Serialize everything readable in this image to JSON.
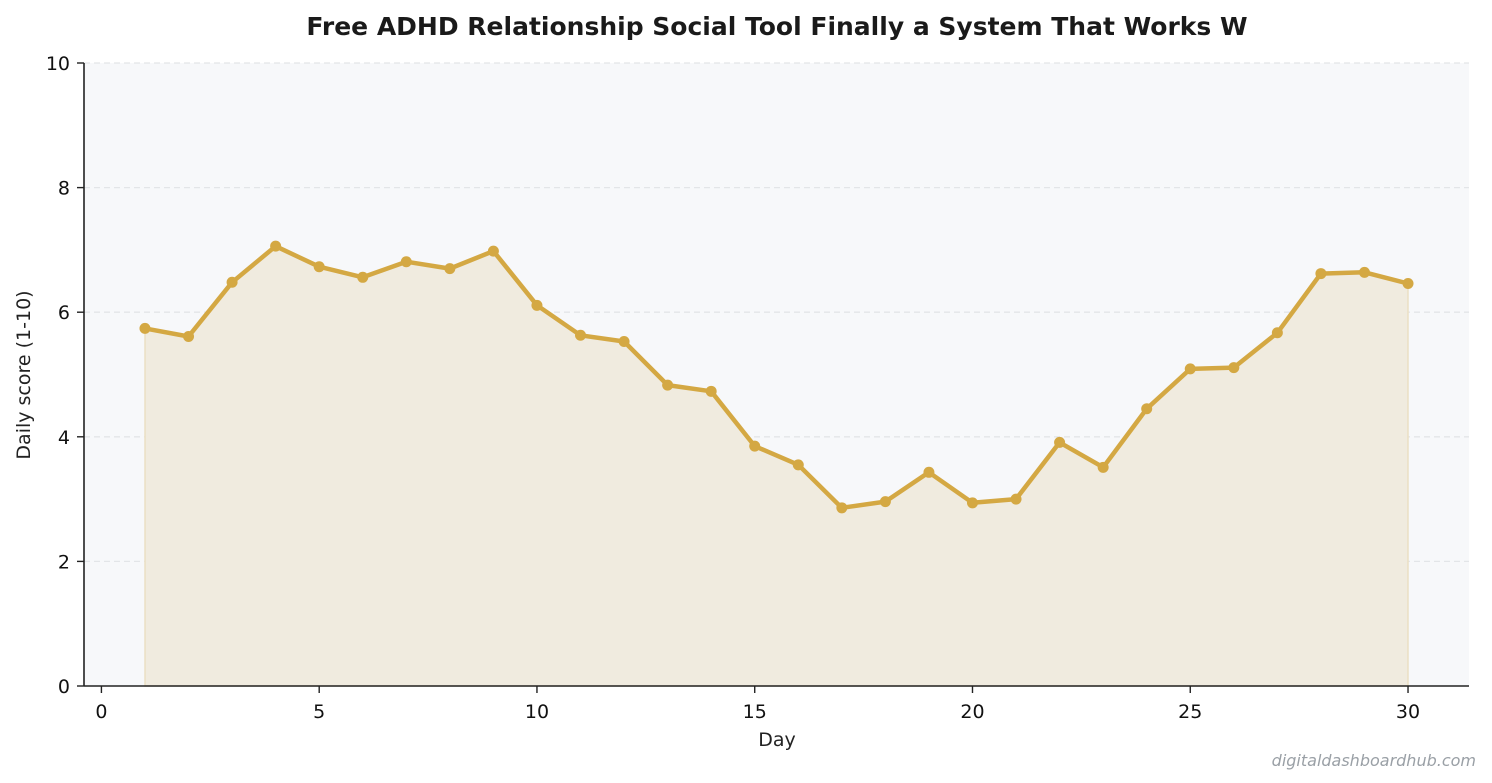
{
  "chart_data": {
    "type": "area",
    "title": "Free ADHD Relationship Social Tool  Finally a System That Works W",
    "xlabel": "Day",
    "ylabel": "Daily score (1-10)",
    "xlim": [
      -0.4,
      31.4
    ],
    "ylim": [
      0,
      10
    ],
    "xticks": [
      0,
      5,
      10,
      15,
      20,
      25,
      30
    ],
    "yticks": [
      0,
      2,
      4,
      6,
      8,
      10
    ],
    "grid": "y-dashed",
    "series": [
      {
        "x": [
          1,
          2,
          3,
          4,
          5,
          6,
          7,
          8,
          9,
          10,
          11,
          12,
          13,
          14,
          15,
          16,
          17,
          18,
          19,
          20,
          21,
          22,
          23,
          24,
          25,
          26,
          27,
          28,
          29,
          30
        ],
        "values": [
          5.74,
          5.61,
          6.48,
          7.06,
          6.73,
          6.56,
          6.81,
          6.7,
          6.98,
          6.11,
          5.63,
          5.53,
          4.83,
          4.73,
          3.85,
          3.55,
          2.86,
          2.96,
          3.43,
          2.94,
          3.0,
          3.91,
          3.51,
          4.45,
          5.09,
          5.11,
          5.67,
          6.62,
          6.64,
          6.46
        ]
      }
    ]
  },
  "colors": {
    "line": "#d4a843",
    "fill": "#f0ebdf",
    "plot_background": "#f7f8fa",
    "grid": "#e3e5e8",
    "axis": "#222222"
  },
  "watermark": "digitaldashboardhub.com"
}
